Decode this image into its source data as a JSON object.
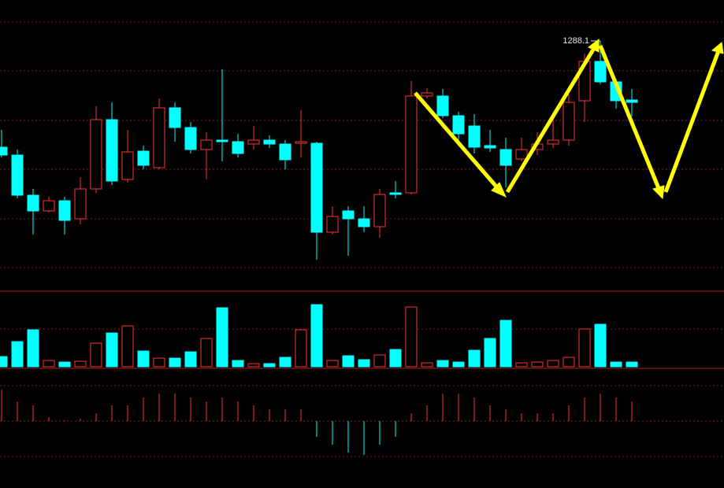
{
  "chart_data": {
    "type": "candlestick",
    "open": [
      1261.1,
      1259.1,
      1248.9,
      1244.9,
      1247.5,
      1242.9,
      1250.5,
      1268.1,
      1252.9,
      1260.1,
      1255.9,
      1271.1,
      1266.1,
      1260.5,
      1262.9,
      1262.5,
      1261.9,
      1262.9,
      1261.9,
      1262.1,
      1262.1,
      1239.5,
      1244.9,
      1242.9,
      1240.9,
      1249.5,
      1249.5,
      1274.1,
      1274.1,
      1269.1,
      1266.5,
      1261.5,
      1260.5,
      1258.1,
      1260.5,
      1261.9,
      1262.9,
      1272.9,
      1282.9,
      1277.7,
      1273.1
    ],
    "high": [
      1265.5,
      1260.5,
      1250.5,
      1248.5,
      1248.5,
      1253.5,
      1271.5,
      1272.5,
      1265.5,
      1261.5,
      1273.5,
      1272.5,
      1267.5,
      1264.9,
      1280.9,
      1264.5,
      1266.5,
      1264.1,
      1262.9,
      1270.5,
      1262.5,
      1246.1,
      1246.1,
      1246.1,
      1250.5,
      1252.5,
      1277.9,
      1276.1,
      1275.9,
      1270.1,
      1269.5,
      1265.5,
      1263.5,
      1263.5,
      1264.9,
      1269.5,
      1274.5,
      1284.9,
      1288.1,
      1278.5,
      1275.9
    ],
    "low": [
      1258.5,
      1248.1,
      1238.9,
      1244.5,
      1238.9,
      1241.5,
      1249.5,
      1251.5,
      1252.1,
      1255.5,
      1255.5,
      1262.5,
      1259.5,
      1252.9,
      1257.5,
      1258.5,
      1260.5,
      1260.9,
      1255.5,
      1258.5,
      1232.5,
      1238.9,
      1233.5,
      1239.5,
      1238.1,
      1248.1,
      1249.1,
      1273.5,
      1268.5,
      1262.5,
      1259.5,
      1259.9,
      1250.9,
      1257.5,
      1259.1,
      1260.9,
      1261.5,
      1267.5,
      1277.1,
      1270.9,
      1268.9
    ],
    "close": [
      1259.1,
      1248.9,
      1244.9,
      1247.5,
      1242.5,
      1250.5,
      1268.1,
      1252.5,
      1259.9,
      1256.5,
      1271.1,
      1266.1,
      1260.5,
      1262.9,
      1262.5,
      1259.5,
      1262.9,
      1261.9,
      1257.9,
      1262.5,
      1239.5,
      1243.5,
      1242.9,
      1240.9,
      1249.1,
      1249.1,
      1274.1,
      1274.9,
      1269.1,
      1264.5,
      1261.1,
      1260.9,
      1256.5,
      1260.5,
      1261.9,
      1262.9,
      1272.5,
      1282.9,
      1277.7,
      1272.9,
      1272.5
    ],
    "volume": [
      13,
      32,
      47,
      8,
      6,
      7,
      30,
      43,
      52,
      20,
      11,
      11,
      19,
      36,
      75,
      8,
      4,
      4,
      12,
      47,
      79,
      8,
      14,
      9,
      15,
      22,
      76,
      5,
      8,
      6,
      21,
      36,
      59,
      5,
      6,
      8,
      12,
      48,
      54,
      6,
      6
    ],
    "macd": [
      40,
      25,
      20,
      5,
      1,
      3,
      10,
      20,
      20,
      30,
      35,
      35,
      30,
      25,
      30,
      25,
      20,
      15,
      15,
      15,
      -20,
      -30,
      -40,
      -43,
      -30,
      -20,
      10,
      20,
      35,
      35,
      30,
      20,
      15,
      10,
      10,
      10,
      20,
      30,
      35,
      30,
      25
    ],
    "ylim": [
      1224.5,
      1298.5
    ],
    "volume_ylim": [
      0,
      96
    ],
    "macd_ylim": [
      -45,
      45
    ],
    "up_color": "#ff3232",
    "down_color": "#00ffff"
  }
}
